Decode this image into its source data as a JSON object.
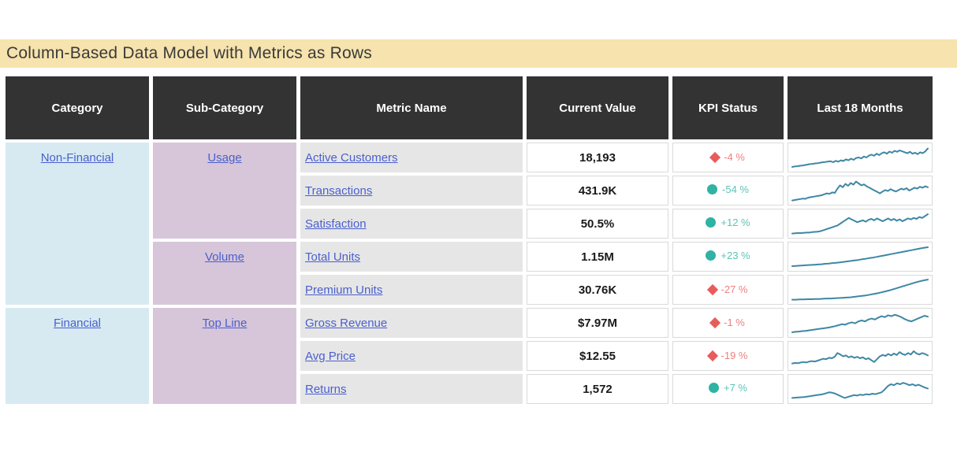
{
  "colors": {
    "title_bg": "#f6e3ad",
    "title_fg": "#3a3a3a",
    "header_bg": "#333333",
    "category_bg": "#d7eaf2",
    "subcategory_bg": "#d7c6d9",
    "metric_bg": "#e6e6e6",
    "link": "#4a5fce",
    "kpi_red": "#e85c5c",
    "kpi_red_text": "#ef8080",
    "kpi_teal": "#2fb3a3",
    "kpi_teal_text": "#5ac4b8",
    "sparkline": "#3e87a5"
  },
  "chart_data": {
    "type": "table",
    "title": "Column-Based Data Model with Metrics as Rows",
    "columns": [
      "Category",
      "Sub-Category",
      "Metric Name",
      "Current Value",
      "KPI Status",
      "Last 18 Months"
    ],
    "categories": [
      {
        "label": "Non-Financial",
        "span": 5
      },
      {
        "label": "Financial",
        "span": 3
      }
    ],
    "subcategories": [
      {
        "label": "Usage",
        "span": 3
      },
      {
        "label": "Volume",
        "span": 2
      },
      {
        "label": "Top Line",
        "span": 3
      }
    ],
    "rows": [
      {
        "metric": "Active Customers",
        "value": "18,193",
        "kpi_icon": "diamond",
        "kpi_status": "bad",
        "kpi_text": "-4 %",
        "sparkline": [
          10,
          12,
          13,
          15,
          16,
          18,
          20,
          22,
          23,
          25,
          26,
          28,
          30,
          31,
          33,
          34,
          30,
          36,
          32,
          38,
          35,
          42,
          38,
          45,
          40,
          48,
          50,
          46,
          54,
          50,
          58,
          62,
          57,
          66,
          60,
          68,
          72,
          66,
          75,
          70,
          78,
          74,
          80,
          76,
          72,
          68,
          74,
          66,
          70,
          64,
          72,
          68,
          76,
          88
        ]
      },
      {
        "metric": "Transactions",
        "value": "431.9K",
        "kpi_icon": "circle",
        "kpi_status": "good",
        "kpi_text": "-54 %",
        "sparkline": [
          8,
          10,
          12,
          14,
          16,
          15,
          20,
          22,
          24,
          26,
          28,
          30,
          34,
          38,
          36,
          42,
          40,
          58,
          72,
          64,
          78,
          70,
          82,
          75,
          88,
          80,
          72,
          76,
          68,
          62,
          56,
          50,
          44,
          38,
          46,
          52,
          48,
          56,
          50,
          46,
          52,
          58,
          54,
          60,
          50,
          56,
          62,
          58,
          66,
          62,
          68,
          64
        ]
      },
      {
        "metric": "Satisfaction",
        "value": "50.5%",
        "kpi_icon": "circle",
        "kpi_status": "good",
        "kpi_text": "+12 %",
        "sparkline": [
          8,
          9,
          10,
          10,
          11,
          12,
          12,
          14,
          15,
          16,
          18,
          22,
          26,
          30,
          34,
          38,
          42,
          50,
          58,
          66,
          74,
          68,
          62,
          56,
          60,
          64,
          58,
          66,
          70,
          64,
          72,
          66,
          60,
          66,
          72,
          64,
          70,
          62,
          68,
          60,
          66,
          72,
          68,
          74,
          70,
          78,
          74,
          82,
          90
        ]
      },
      {
        "metric": "Total Units",
        "value": "1.15M",
        "kpi_icon": "circle",
        "kpi_status": "good",
        "kpi_text": "+23 %",
        "sparkline": [
          10,
          11,
          12,
          13,
          14,
          15,
          16,
          17,
          18,
          20,
          21,
          23,
          24,
          26,
          28,
          30,
          32,
          34,
          36,
          39,
          41,
          44,
          46,
          49,
          52,
          55,
          58,
          61,
          64,
          67,
          70,
          73,
          76,
          79,
          82,
          85,
          88,
          90
        ]
      },
      {
        "metric": "Premium Units",
        "value": "30.76K",
        "kpi_icon": "diamond",
        "kpi_status": "bad",
        "kpi_text": "-27 %",
        "sparkline": [
          8,
          8,
          9,
          9,
          10,
          10,
          11,
          11,
          12,
          13,
          13,
          14,
          15,
          16,
          17,
          18,
          20,
          22,
          24,
          26,
          29,
          32,
          35,
          39,
          43,
          47,
          52,
          57,
          62,
          67,
          72,
          77,
          82,
          86,
          90,
          93
        ]
      },
      {
        "metric": "Gross Revenue",
        "value": "$7.97M",
        "kpi_icon": "diamond",
        "kpi_status": "bad",
        "kpi_text": "-1 %",
        "sparkline": [
          10,
          12,
          13,
          15,
          16,
          18,
          20,
          22,
          24,
          26,
          28,
          30,
          33,
          36,
          40,
          44,
          42,
          48,
          52,
          48,
          56,
          60,
          56,
          64,
          68,
          64,
          72,
          78,
          74,
          82,
          78,
          84,
          80,
          74,
          66,
          60,
          56,
          62,
          68,
          74,
          80,
          76
        ]
      },
      {
        "metric": "Avg Price",
        "value": "$12.55",
        "kpi_icon": "diamond",
        "kpi_status": "bad",
        "kpi_text": "-19 %",
        "sparkline": [
          18,
          20,
          19,
          22,
          24,
          22,
          26,
          28,
          26,
          30,
          34,
          38,
          36,
          42,
          40,
          46,
          62,
          56,
          48,
          52,
          44,
          48,
          42,
          46,
          40,
          44,
          36,
          40,
          32,
          24,
          36,
          48,
          54,
          50,
          58,
          52,
          60,
          54,
          66,
          58,
          54,
          62,
          56,
          70,
          60,
          56,
          62,
          58,
          52
        ]
      },
      {
        "metric": "Returns",
        "value": "1,572",
        "kpi_icon": "circle",
        "kpi_status": "good",
        "kpi_text": "+7 %",
        "sparkline": [
          12,
          13,
          14,
          15,
          16,
          18,
          20,
          22,
          24,
          26,
          28,
          32,
          36,
          34,
          30,
          24,
          18,
          12,
          16,
          20,
          24,
          22,
          26,
          24,
          28,
          26,
          30,
          28,
          32,
          36,
          48,
          62,
          70,
          66,
          74,
          70,
          76,
          72,
          66,
          70,
          64,
          68,
          62,
          56,
          52
        ]
      }
    ]
  }
}
